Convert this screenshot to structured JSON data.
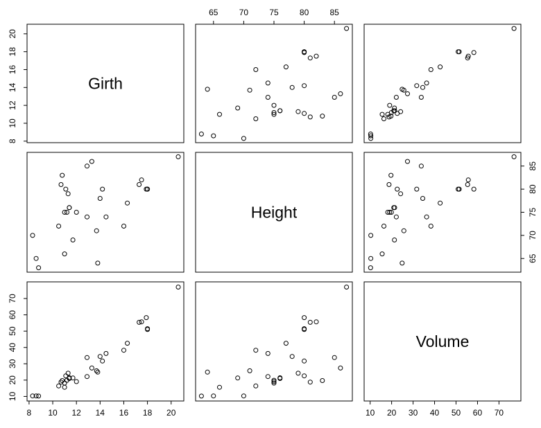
{
  "chart_data": {
    "type": "scatter",
    "variables": [
      "Girth",
      "Height",
      "Volume"
    ],
    "ticks": {
      "Girth": [
        8,
        10,
        12,
        14,
        16,
        18,
        20
      ],
      "Height": [
        65,
        70,
        75,
        80,
        85
      ],
      "Volume": [
        10,
        20,
        30,
        40,
        50,
        60,
        70
      ]
    },
    "ranges": {
      "Girth": [
        7.83,
        21.07
      ],
      "Height": [
        62.04,
        87.96
      ],
      "Volume": [
        7.2,
        80.2
      ]
    },
    "Girth": [
      8.3,
      8.6,
      8.8,
      10.5,
      10.7,
      10.8,
      11.0,
      11.0,
      11.1,
      11.2,
      11.3,
      11.4,
      11.4,
      11.7,
      12.0,
      12.9,
      12.9,
      13.3,
      13.7,
      13.8,
      14.0,
      14.2,
      14.5,
      16.0,
      16.3,
      17.3,
      17.5,
      17.9,
      18.0,
      18.0,
      20.6
    ],
    "Height": [
      70,
      65,
      63,
      72,
      81,
      83,
      66,
      75,
      80,
      75,
      79,
      76,
      76,
      69,
      75,
      74,
      85,
      86,
      71,
      64,
      78,
      80,
      74,
      72,
      77,
      81,
      82,
      80,
      80,
      80,
      87
    ],
    "Volume": [
      10.3,
      10.3,
      10.2,
      16.4,
      18.8,
      19.7,
      15.6,
      18.2,
      22.6,
      19.9,
      24.2,
      21.0,
      21.4,
      21.3,
      19.1,
      22.2,
      33.8,
      27.4,
      25.7,
      24.9,
      34.5,
      31.7,
      36.3,
      38.3,
      42.6,
      55.4,
      55.7,
      58.3,
      51.5,
      51.0,
      77.0
    ]
  }
}
